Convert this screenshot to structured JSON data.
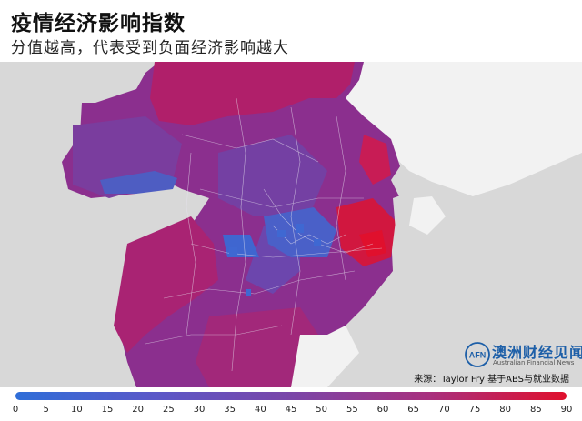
{
  "header": {
    "title": "疫情经济影响指数",
    "subtitle": "分值越高，代表受到负面经济影响越大"
  },
  "logo": {
    "mark_text": "AFN",
    "name_cn": "澳洲财经见闻",
    "name_en": "Australian Financial News"
  },
  "source": "来源：Taylor Fry 基于ABS与就业数据",
  "legend": {
    "ticks": [
      "0",
      "5",
      "10",
      "15",
      "20",
      "25",
      "30",
      "35",
      "40",
      "45",
      "50",
      "55",
      "60",
      "65",
      "70",
      "75",
      "80",
      "85",
      "90"
    ],
    "min_value": 0,
    "max_value": 90,
    "color_low": "#2f6ed8",
    "color_mid": "#7a46a8",
    "color_high": "#e0102d"
  },
  "colors": {
    "ocean": "#d8d8d8",
    "land": "#f4f4f4",
    "accent": "#1d5fa8"
  }
}
